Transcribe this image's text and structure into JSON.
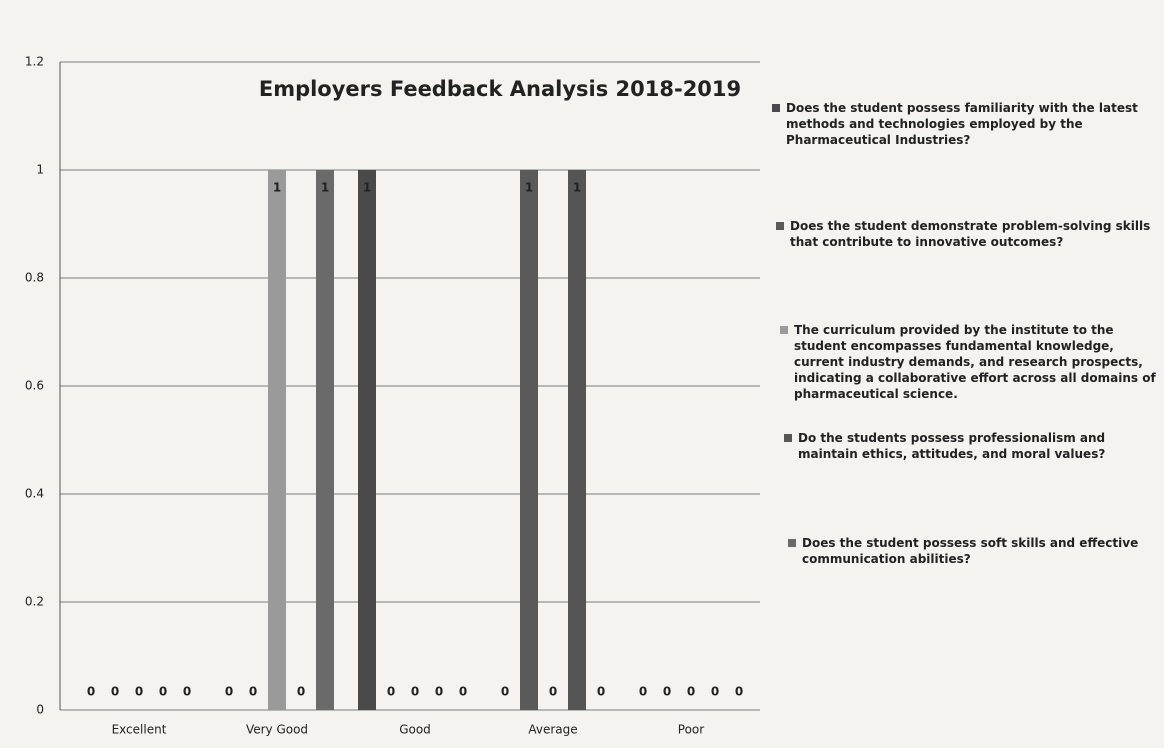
{
  "chart_data": {
    "type": "bar",
    "title": "Employers Feedback Analysis 2018-2019",
    "categories": [
      "Excellent",
      "Very Good",
      "Good",
      "Average",
      "Poor"
    ],
    "series": [
      {
        "name": "Does the student possess familiarity with the latest methods and technologies employed by the Pharmaceutical Industries?",
        "color": "#4a4a4a",
        "values": [
          0,
          0,
          1,
          0,
          0
        ]
      },
      {
        "name": "Does the student demonstrate problem-solving skills that contribute to innovative outcomes?",
        "color": "#5a5a5a",
        "values": [
          0,
          0,
          0,
          1,
          0
        ]
      },
      {
        "name": "The curriculum provided by the institute to the student encompasses fundamental knowledge, current industry demands, and research prospects, indicating a collaborative effort across all domains of pharmaceutical science.",
        "color": "#9a9a9a",
        "values": [
          0,
          1,
          0,
          0,
          0
        ]
      },
      {
        "name": "Do the students possess professionalism and maintain ethics, attitudes, and moral values?",
        "color": "#555555",
        "values": [
          0,
          0,
          0,
          1,
          0
        ]
      },
      {
        "name": "Does the student possess soft skills and effective communication abilities?",
        "color": "#6a6a6a",
        "values": [
          0,
          1,
          0,
          0,
          0
        ]
      }
    ],
    "ylim": [
      0,
      1.2
    ],
    "yticks": [
      0,
      0.2,
      0.4,
      0.6,
      0.8,
      1,
      1.2
    ],
    "grid": true
  }
}
